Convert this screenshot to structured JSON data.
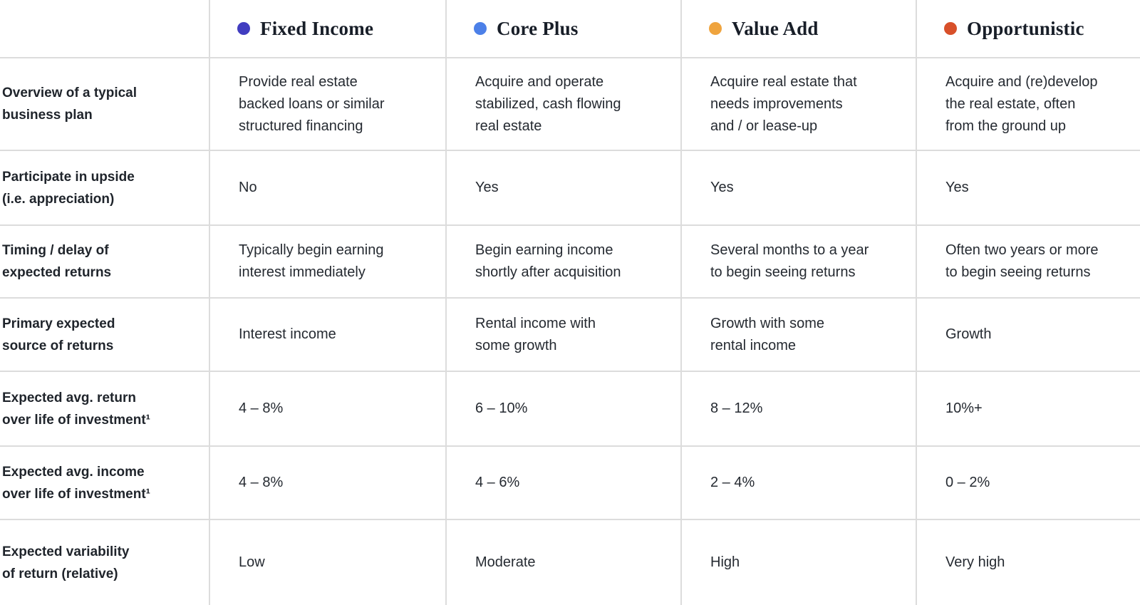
{
  "table": {
    "columns": [
      {
        "name": "Fixed Income",
        "dot_color": "#413dc0"
      },
      {
        "name": "Core Plus",
        "dot_color": "#4c80e8"
      },
      {
        "name": "Value Add",
        "dot_color": "#efa43e"
      },
      {
        "name": "Opportunistic",
        "dot_color": "#d8502a"
      }
    ],
    "rows": [
      {
        "label": "Overview of a typical\nbusiness plan",
        "cells": [
          "Provide real estate\nbacked loans or similar\nstructured financing",
          "Acquire and operate\nstabilized, cash flowing\nreal estate",
          "Acquire real estate that\nneeds improvements\nand / or lease-up",
          "Acquire and (re)develop\nthe real estate, often\nfrom the ground up"
        ]
      },
      {
        "label": "Participate in upside\n(i.e. appreciation)",
        "cells": [
          "No",
          "Yes",
          "Yes",
          "Yes"
        ]
      },
      {
        "label": "Timing / delay of\nexpected returns",
        "cells": [
          "Typically begin earning\ninterest immediately",
          "Begin earning income\nshortly after acquisition",
          "Several months to a year\nto begin seeing returns",
          "Often two years or more\nto begin seeing returns"
        ]
      },
      {
        "label": "Primary expected\nsource of returns",
        "cells": [
          "Interest income",
          "Rental income with\nsome growth",
          "Growth with some\nrental income",
          "Growth"
        ]
      },
      {
        "label": "Expected avg. return\nover life of investment¹",
        "cells": [
          "4 – 8%",
          "6 – 10%",
          "8 – 12%",
          "10%+"
        ]
      },
      {
        "label": "Expected avg. income\nover life of investment¹",
        "cells": [
          "4 – 8%",
          "4 – 6%",
          "2 – 4%",
          "0 – 2%"
        ]
      },
      {
        "label": "Expected variability\nof return (relative)",
        "cells": [
          "Low",
          "Moderate",
          "High",
          "Very high"
        ]
      }
    ]
  }
}
